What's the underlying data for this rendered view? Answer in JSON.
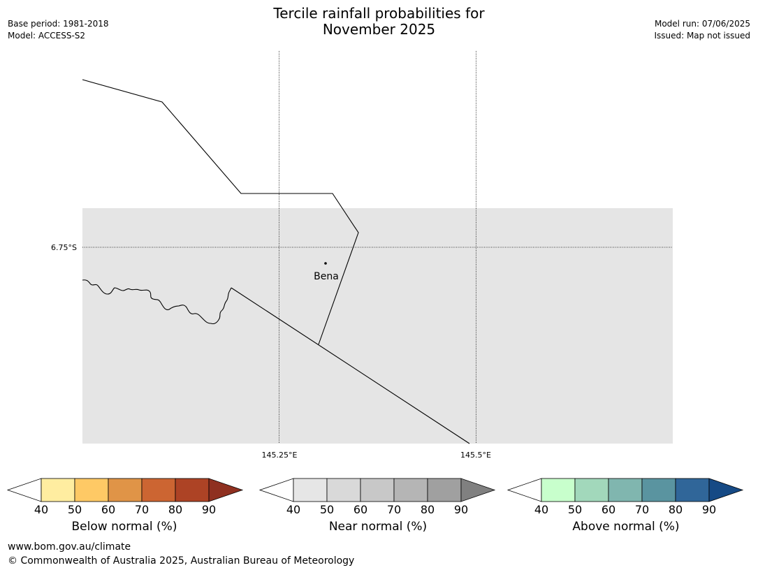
{
  "title_line1": "Tercile rainfall probabilities for",
  "title_line2": "November 2025",
  "meta_left": {
    "base_period": "Base period: 1981-2018",
    "model": "Model: ACCESS-S2"
  },
  "meta_right": {
    "model_run": "Model run: 07/06/2025",
    "issued": "Issued: Map not issued"
  },
  "map": {
    "lat_label": "6.75°S",
    "lon_labels": [
      "145.25°E",
      "145.5°E"
    ],
    "place": {
      "name": "Bena"
    },
    "background_color": "#e5e5e5"
  },
  "colorbars": [
    {
      "title": "Below normal (%)",
      "ticks": [
        "40",
        "50",
        "60",
        "70",
        "80",
        "90"
      ],
      "colors": [
        "#ffeda0",
        "#fec965",
        "#e09447",
        "#cc6532",
        "#ad4325",
        "#8f3020"
      ]
    },
    {
      "title": "Near normal (%)",
      "ticks": [
        "40",
        "50",
        "60",
        "70",
        "80",
        "90"
      ],
      "colors": [
        "#e6e6e6",
        "#d9d9d9",
        "#c8c8c8",
        "#b5b5b5",
        "#a0a0a0",
        "#808080"
      ]
    },
    {
      "title": "Above normal (%)",
      "ticks": [
        "40",
        "50",
        "60",
        "70",
        "80",
        "90"
      ],
      "colors": [
        "#c8ffcc",
        "#a2d8bb",
        "#80b6af",
        "#5a94a0",
        "#306699",
        "#164a85"
      ]
    }
  ],
  "footer": {
    "url": "www.bom.gov.au/climate",
    "copyright": "© Commonwealth of Australia 2025, Australian Bureau of Meteorology"
  }
}
